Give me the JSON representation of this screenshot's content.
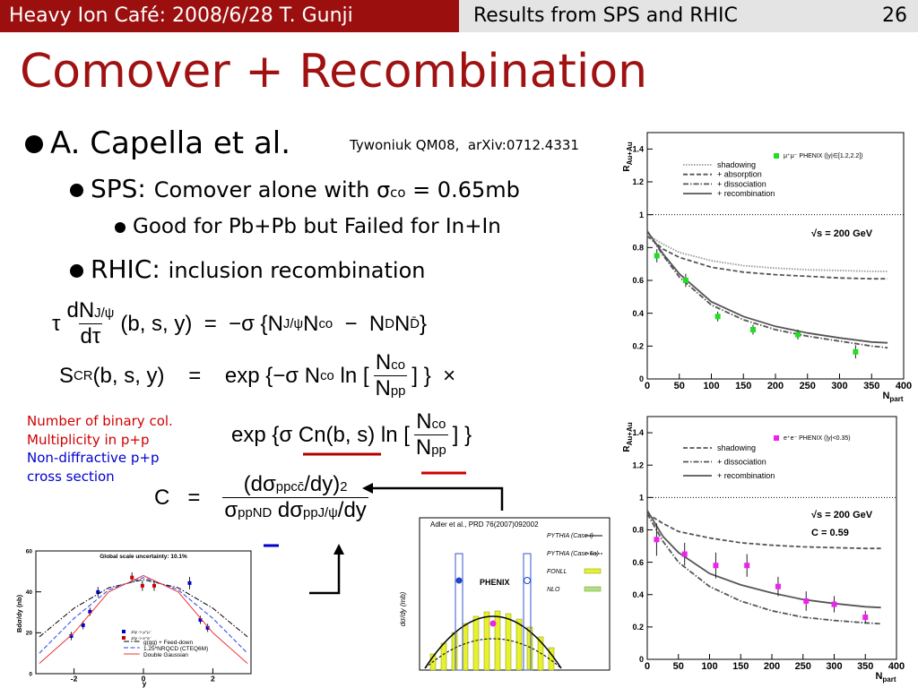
{
  "header": {
    "left": "Heavy Ion Café: 2008/6/28 T. Gunji",
    "center": "Results from SPS and RHIC",
    "page": "26"
  },
  "title": "Comover + Recombination",
  "reference": "Tywoniuk QM08,  arXiv:0712.4331",
  "bullets": [
    {
      "level": 1,
      "parts": [
        [
          "t",
          "A. Capella et al."
        ]
      ]
    },
    {
      "level": 2,
      "parts": [
        [
          "big",
          "SPS: "
        ],
        [
          "t",
          "Comover alone with σ"
        ],
        [
          "sub",
          "co"
        ],
        [
          "t",
          " = 0.65mb"
        ]
      ]
    },
    {
      "level": 3,
      "parts": [
        [
          "t",
          "Good for Pb+Pb but Failed for In+In"
        ]
      ]
    },
    {
      "level": 2,
      "parts": [
        [
          "big",
          "RHIC: "
        ],
        [
          "t",
          "inclusion recombination"
        ]
      ]
    }
  ],
  "equations": [
    {
      "tokens": [
        [
          "t",
          "τ"
        ],
        [
          "frac",
          [
            [
              "t",
              "dN"
            ],
            [
              "sup",
              "J/ψ"
            ]
          ],
          [
            [
              "t",
              "dτ"
            ]
          ]
        ],
        [
          "t",
          "(b, s, y)  =  −σ {N"
        ],
        [
          "sub",
          "J/ψ"
        ],
        [
          "t",
          "N"
        ],
        [
          "sup",
          "co"
        ],
        [
          "t",
          "  −  N"
        ],
        [
          "sub",
          "D"
        ],
        [
          "t",
          "N"
        ],
        [
          "sub",
          "D̄"
        ],
        [
          "t",
          "}"
        ]
      ]
    },
    {
      "tokens": [
        [
          "t",
          "S"
        ],
        [
          "sup",
          "CR"
        ],
        [
          "t",
          "(b, s, y)    =    exp {−σ N"
        ],
        [
          "sup",
          "co"
        ],
        [
          "t",
          " ln ["
        ],
        [
          "frac",
          [
            [
              "t",
              "N"
            ],
            [
              "sup",
              "co"
            ]
          ],
          [
            [
              "t",
              "N"
            ],
            [
              "sub",
              "pp"
            ]
          ]
        ],
        [
          "t",
          "] }  ×"
        ]
      ]
    },
    {
      "tokens": [
        [
          "t",
          "exp {σ Cn(b, s) ln ["
        ],
        [
          "frac",
          [
            [
              "t",
              "N"
            ],
            [
              "sup",
              "co"
            ]
          ],
          [
            [
              "t",
              "N"
            ],
            [
              "sub",
              "pp"
            ]
          ]
        ],
        [
          "t",
          "] }"
        ]
      ]
    },
    {
      "tokens": [
        [
          "t",
          "C   =   "
        ],
        [
          "frac",
          [
            [
              "t",
              "(dσ"
            ],
            [
              "sub",
              "pp"
            ],
            [
              "sup",
              "cc̄"
            ],
            [
              "t",
              "/dy)"
            ],
            [
              "sup",
              "2"
            ]
          ],
          [
            [
              "t",
              "σ"
            ],
            [
              "sub",
              "pp"
            ],
            [
              "sup",
              "ND"
            ],
            [
              "t",
              " dσ"
            ],
            [
              "sub",
              "pp"
            ],
            [
              "sup",
              "J/ψ"
            ],
            [
              "t",
              "/dy"
            ]
          ]
        ]
      ]
    }
  ],
  "notes": [
    {
      "text": "Number of binary col.",
      "color": "#d00000"
    },
    {
      "text": "Multiplicity in p+p",
      "color": "#d00000"
    },
    {
      "text": "Non-diffractive p+p",
      "color": "#0000d0"
    },
    {
      "text": "cross section",
      "color": "#0000d0"
    }
  ],
  "figure": {
    "caption": "Adler et al., PRD 76(2007)092002",
    "label": "PHENIX",
    "ylabel": "dσ/dy (mb)",
    "legend": [
      "PYTHIA (Case I)",
      "PYTHIA (Case 5a)",
      "FONLL",
      "NLO"
    ]
  },
  "chart_data": [
    {
      "type": "line",
      "ylabel": "R",
      "ylabel_sub": "Au+Au",
      "xlabel": "N",
      "xlabel_sub": "part",
      "xlim": [
        0,
        400
      ],
      "ylim": [
        0,
        1.5
      ],
      "xticks": [
        0,
        50,
        100,
        150,
        200,
        250,
        300,
        350,
        400
      ],
      "yticks": [
        0,
        0.2,
        0.4,
        0.6,
        0.8,
        1,
        1.2,
        1.4
      ],
      "reference_line": 1,
      "annotations": [
        "√s = 200 GeV"
      ],
      "series": [
        {
          "name": "shadowing",
          "color": "#999999",
          "style": "dotted",
          "x": [
            0,
            25,
            50,
            100,
            150,
            200,
            250,
            300,
            350,
            375
          ],
          "values": [
            0.88,
            0.82,
            0.77,
            0.72,
            0.69,
            0.675,
            0.665,
            0.66,
            0.655,
            0.655
          ]
        },
        {
          "name": "+ absorption",
          "color": "#555555",
          "style": "dashed",
          "x": [
            0,
            25,
            50,
            100,
            150,
            200,
            250,
            300,
            350,
            375
          ],
          "values": [
            0.87,
            0.79,
            0.74,
            0.68,
            0.65,
            0.635,
            0.625,
            0.615,
            0.61,
            0.61
          ]
        },
        {
          "name": "+ dissociation",
          "color": "#555555",
          "style": "dashdot",
          "x": [
            0,
            25,
            50,
            100,
            150,
            200,
            250,
            300,
            350,
            375
          ],
          "values": [
            0.9,
            0.75,
            0.62,
            0.45,
            0.36,
            0.3,
            0.26,
            0.23,
            0.2,
            0.19
          ]
        },
        {
          "name": "+ recombination",
          "color": "#555555",
          "style": "solid",
          "x": [
            0,
            25,
            50,
            100,
            150,
            200,
            250,
            300,
            350,
            375
          ],
          "values": [
            0.9,
            0.76,
            0.64,
            0.47,
            0.38,
            0.32,
            0.28,
            0.25,
            0.225,
            0.22
          ]
        },
        {
          "name": "μ⁺μ⁻ PHENIX (|y|∈[1.2,2.2])",
          "color": "#22dd22",
          "style": "points",
          "x": [
            15,
            60,
            110,
            165,
            235,
            325
          ],
          "values": [
            0.75,
            0.6,
            0.38,
            0.3,
            0.27,
            0.165
          ],
          "errors": [
            0.04,
            0.04,
            0.03,
            0.03,
            0.03,
            0.04
          ]
        }
      ]
    },
    {
      "type": "line",
      "ylabel": "R",
      "ylabel_sub": "Au+Au",
      "xlabel": "N",
      "xlabel_sub": "part",
      "xlim": [
        0,
        400
      ],
      "ylim": [
        0,
        1.5
      ],
      "xticks": [
        0,
        50,
        100,
        150,
        200,
        250,
        300,
        350,
        400
      ],
      "yticks": [
        0,
        0.2,
        0.4,
        0.6,
        0.8,
        1,
        1.2,
        1.4
      ],
      "reference_line": 1,
      "annotations": [
        "√s = 200 GeV",
        "C = 0.59"
      ],
      "series": [
        {
          "name": "shadowing",
          "color": "#555555",
          "style": "dashed",
          "x": [
            0,
            25,
            50,
            100,
            150,
            200,
            250,
            300,
            350,
            375
          ],
          "values": [
            0.9,
            0.84,
            0.79,
            0.75,
            0.72,
            0.705,
            0.695,
            0.69,
            0.685,
            0.685
          ]
        },
        {
          "name": "+ dissociation",
          "color": "#555555",
          "style": "dashdot",
          "x": [
            0,
            25,
            50,
            100,
            150,
            200,
            250,
            300,
            350,
            375
          ],
          "values": [
            0.9,
            0.73,
            0.6,
            0.45,
            0.36,
            0.3,
            0.26,
            0.24,
            0.225,
            0.22
          ]
        },
        {
          "name": "+ recombination",
          "color": "#555555",
          "style": "solid",
          "x": [
            0,
            25,
            50,
            100,
            150,
            200,
            250,
            300,
            350,
            375
          ],
          "values": [
            0.92,
            0.76,
            0.66,
            0.53,
            0.46,
            0.41,
            0.37,
            0.345,
            0.325,
            0.32
          ]
        },
        {
          "name": "e⁺e⁻ PHENIX (|y|<0.35)",
          "color": "#ee22ee",
          "style": "points",
          "x": [
            15,
            60,
            110,
            160,
            210,
            255,
            300,
            350
          ],
          "values": [
            0.74,
            0.65,
            0.58,
            0.58,
            0.45,
            0.36,
            0.34,
            0.26
          ],
          "errors": [
            0.1,
            0.07,
            0.08,
            0.07,
            0.06,
            0.06,
            0.05,
            0.04
          ]
        }
      ]
    },
    {
      "type": "line",
      "title": "Global scale uncertainty: 10.1%",
      "ylabel": "Bdσ/dy (nb)",
      "xlabel": "y",
      "xlim": [
        -3.1,
        3.1
      ],
      "ylim": [
        0,
        60
      ],
      "xticks": [
        -2,
        0,
        2
      ],
      "yticks": [
        0,
        20,
        40,
        60
      ],
      "series": [
        {
          "name": "J/ψ -> μ⁺μ⁻",
          "color": "#0000cc",
          "style": "points",
          "x": [
            -2.08,
            -1.74,
            -1.54,
            -1.31,
            1.33,
            1.64,
            1.85
          ],
          "values": [
            18.4,
            23.7,
            30.3,
            39.9,
            44.3,
            26.3,
            22.4
          ],
          "errors": [
            2,
            2,
            2,
            2.5,
            3,
            2,
            2
          ]
        },
        {
          "name": "J/ψ -> e⁺e⁻",
          "color": "#cc0000",
          "style": "points",
          "x": [
            -0.33,
            -0.03,
            0.31
          ],
          "values": [
            47,
            43,
            43
          ],
          "errors": [
            2.5,
            2.5,
            2.5
          ]
        },
        {
          "name": "g(gg) + Feed-down",
          "color": "#000000",
          "style": "dashdot",
          "x": [
            -3,
            -2,
            -1,
            0,
            1,
            2,
            3
          ],
          "values": [
            18,
            32,
            42,
            46,
            42,
            32,
            18
          ]
        },
        {
          "name": "1.25*NRQCD (CTEQ6M)",
          "color": "#2244ee",
          "style": "dashed",
          "x": [
            -3,
            -2,
            -1,
            0,
            1,
            2,
            3
          ],
          "values": [
            10,
            27,
            41,
            47,
            41,
            27,
            10
          ]
        },
        {
          "name": "Double Gaussian",
          "color": "#ee3333",
          "style": "solid",
          "x": [
            -3,
            -2,
            -1,
            0,
            1,
            2,
            3
          ],
          "values": [
            5,
            20,
            40,
            48,
            40,
            20,
            5
          ]
        }
      ]
    }
  ]
}
